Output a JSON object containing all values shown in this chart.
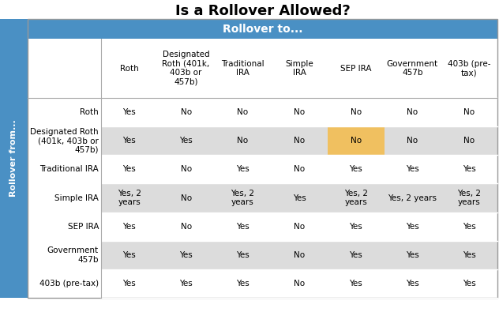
{
  "title": "Is a Rollover Allowed?",
  "rollover_to_label": "Rollover to...",
  "rollover_from_label": "Rollover from...",
  "col_headers": [
    "Roth",
    "Designated\nRoth (401k,\n403b or\n457b)",
    "Traditional\nIRA",
    "Simple\nIRA",
    "SEP IRA",
    "Government\n457b",
    "403b (pre-\ntax)"
  ],
  "row_headers": [
    "Roth",
    "Designated Roth\n(401k, 403b or\n457b)",
    "Traditional IRA",
    "Simple IRA",
    "SEP IRA",
    "Government\n457b",
    "403b (pre-tax)"
  ],
  "cell_data": [
    [
      "Yes",
      "No",
      "No",
      "No",
      "No",
      "No",
      "No"
    ],
    [
      "Yes",
      "Yes",
      "No",
      "No",
      "No",
      "No",
      "No"
    ],
    [
      "Yes",
      "No",
      "Yes",
      "No",
      "Yes",
      "Yes",
      "Yes"
    ],
    [
      "Yes, 2\nyears",
      "No",
      "Yes, 2\nyears",
      "Yes",
      "Yes, 2\nyears",
      "Yes, 2 years",
      "Yes, 2\nyears"
    ],
    [
      "Yes",
      "No",
      "Yes",
      "No",
      "Yes",
      "Yes",
      "Yes"
    ],
    [
      "Yes",
      "Yes",
      "Yes",
      "No",
      "Yes",
      "Yes",
      "Yes"
    ],
    [
      "Yes",
      "Yes",
      "Yes",
      "No",
      "Yes",
      "Yes",
      "Yes"
    ]
  ],
  "highlight_cell": [
    1,
    4
  ],
  "blue_color": "#4A90C4",
  "row_even_color": "#FFFFFF",
  "row_odd_color": "#DCDCDC",
  "highlight_color": "#F0C060",
  "title_fontsize": 13,
  "header_fontsize": 7.5,
  "cell_fontsize": 7.5,
  "row_header_fontsize": 7.5
}
